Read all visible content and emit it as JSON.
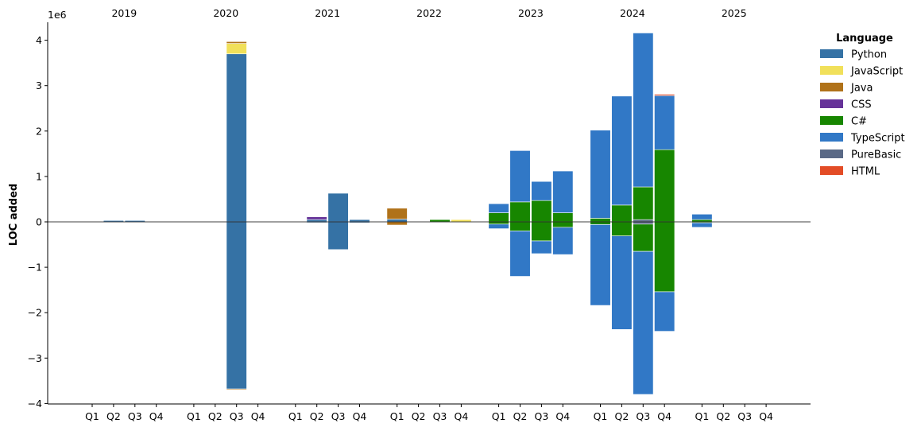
{
  "chart_data": {
    "type": "bar",
    "stacked": true,
    "diverging": true,
    "ylabel": "LOC added",
    "y_multiplier": "1e6",
    "ylim": [
      -4,
      4.4
    ],
    "yticks": [
      4,
      3,
      2,
      1,
      0,
      -1,
      -2,
      -3,
      -4
    ],
    "ytick_labels": [
      "4",
      "3",
      "2",
      "1",
      "0",
      "−1",
      "−2",
      "−3",
      "−4"
    ],
    "grid": false,
    "legend": {
      "title": "Language",
      "placement": "right"
    },
    "years": [
      "2019",
      "2020",
      "2021",
      "2022",
      "2023",
      "2024",
      "2025"
    ],
    "quarter_labels": [
      "Q1",
      "Q2",
      "Q3",
      "Q4"
    ],
    "languages": [
      {
        "name": "Python",
        "color": "#3572A5"
      },
      {
        "name": "JavaScript",
        "color": "#f1e05a"
      },
      {
        "name": "Java",
        "color": "#b07219"
      },
      {
        "name": "CSS",
        "color": "#663399"
      },
      {
        "name": "C#",
        "color": "#178600"
      },
      {
        "name": "TypeScript",
        "color": "#3178c6"
      },
      {
        "name": "PureBasic",
        "color": "#5a6986"
      },
      {
        "name": "HTML",
        "color": "#e34c26"
      }
    ],
    "bars": [
      {
        "year": "2019",
        "quarter": "Q2",
        "positive": [
          [
            "Python",
            0.03
          ]
        ],
        "negative": [
          [
            "Python",
            0.01
          ]
        ]
      },
      {
        "year": "2019",
        "quarter": "Q3",
        "positive": [
          [
            "Python",
            0.03
          ]
        ],
        "negative": [
          [
            "Python",
            0.01
          ]
        ]
      },
      {
        "year": "2020",
        "quarter": "Q3",
        "positive": [
          [
            "Python",
            3.7
          ],
          [
            "JavaScript",
            0.23
          ],
          [
            "Java",
            0.04
          ]
        ],
        "negative": [
          [
            "Python",
            3.68
          ],
          [
            "Java",
            0.02
          ]
        ]
      },
      {
        "year": "2021",
        "quarter": "Q2",
        "positive": [
          [
            "Python",
            0.05
          ],
          [
            "CSS",
            0.06
          ]
        ],
        "negative": [
          [
            "Python",
            0.02
          ],
          [
            "CSS",
            0.01
          ]
        ]
      },
      {
        "year": "2021",
        "quarter": "Q3",
        "positive": [
          [
            "Python",
            0.63
          ]
        ],
        "negative": [
          [
            "Python",
            0.61
          ]
        ]
      },
      {
        "year": "2021",
        "quarter": "Q4",
        "positive": [
          [
            "Python",
            0.05
          ]
        ],
        "negative": [
          [
            "Python",
            0.02
          ]
        ]
      },
      {
        "year": "2022",
        "quarter": "Q1",
        "positive": [
          [
            "Python",
            0.06
          ],
          [
            "Java",
            0.24
          ]
        ],
        "negative": [
          [
            "Java",
            0.07
          ]
        ]
      },
      {
        "year": "2022",
        "quarter": "Q3",
        "positive": [
          [
            "C#",
            0.05
          ]
        ],
        "negative": [
          [
            "C#",
            0.01
          ]
        ]
      },
      {
        "year": "2022",
        "quarter": "Q4",
        "positive": [
          [
            "JavaScript",
            0.05
          ]
        ],
        "negative": [
          [
            "JavaScript",
            0.01
          ]
        ]
      },
      {
        "year": "2023",
        "quarter": "Q1",
        "positive": [
          [
            "C#",
            0.2
          ],
          [
            "TypeScript",
            0.2
          ]
        ],
        "negative": [
          [
            "C#",
            0.05
          ],
          [
            "TypeScript",
            0.1
          ]
        ]
      },
      {
        "year": "2023",
        "quarter": "Q2",
        "positive": [
          [
            "C#",
            0.44
          ],
          [
            "TypeScript",
            1.13
          ]
        ],
        "negative": [
          [
            "C#",
            0.2
          ],
          [
            "TypeScript",
            1.0
          ]
        ]
      },
      {
        "year": "2023",
        "quarter": "Q3",
        "positive": [
          [
            "C#",
            0.47
          ],
          [
            "TypeScript",
            0.42
          ]
        ],
        "negative": [
          [
            "C#",
            0.42
          ],
          [
            "TypeScript",
            0.28
          ]
        ]
      },
      {
        "year": "2023",
        "quarter": "Q4",
        "positive": [
          [
            "C#",
            0.2
          ],
          [
            "TypeScript",
            0.92
          ]
        ],
        "negative": [
          [
            "C#",
            0.12
          ],
          [
            "TypeScript",
            0.6
          ]
        ]
      },
      {
        "year": "2024",
        "quarter": "Q1",
        "positive": [
          [
            "C#",
            0.08
          ],
          [
            "TypeScript",
            1.94
          ]
        ],
        "negative": [
          [
            "C#",
            0.06
          ],
          [
            "TypeScript",
            1.78
          ]
        ]
      },
      {
        "year": "2024",
        "quarter": "Q2",
        "positive": [
          [
            "C#",
            0.37
          ],
          [
            "TypeScript",
            2.4
          ]
        ],
        "negative": [
          [
            "C#",
            0.31
          ],
          [
            "TypeScript",
            2.06
          ]
        ]
      },
      {
        "year": "2024",
        "quarter": "Q3",
        "positive": [
          [
            "PureBasic",
            0.05
          ],
          [
            "C#",
            0.72
          ],
          [
            "TypeScript",
            3.39
          ]
        ],
        "negative": [
          [
            "PureBasic",
            0.05
          ],
          [
            "C#",
            0.6
          ],
          [
            "TypeScript",
            3.15
          ]
        ]
      },
      {
        "year": "2024",
        "quarter": "Q4",
        "positive": [
          [
            "C#",
            1.59
          ],
          [
            "TypeScript",
            1.19
          ],
          [
            "HTML",
            0.03
          ]
        ],
        "negative": [
          [
            "C#",
            1.54
          ],
          [
            "TypeScript",
            0.87
          ]
        ]
      },
      {
        "year": "2025",
        "quarter": "Q1",
        "positive": [
          [
            "C#",
            0.05
          ],
          [
            "TypeScript",
            0.12
          ]
        ],
        "negative": [
          [
            "C#",
            0.02
          ],
          [
            "TypeScript",
            0.1
          ]
        ]
      }
    ]
  }
}
